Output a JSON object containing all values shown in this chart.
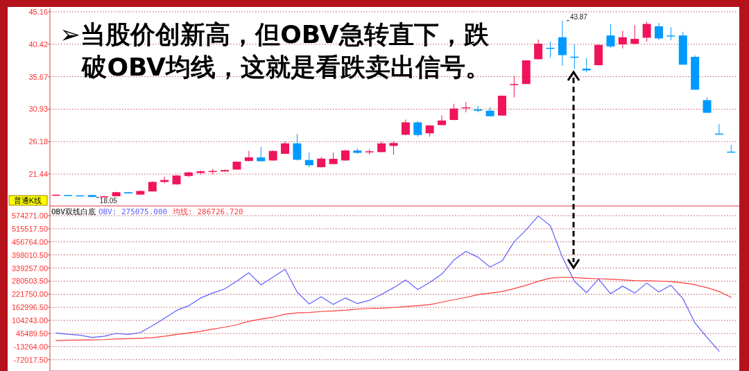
{
  "chart_data": [
    {
      "type": "candlestick",
      "title": "➢当股价创新高，但OBV急转直下，跌破OBV均线，这就是看跌卖出信号。",
      "categories": [
        null,
        null,
        null,
        null,
        null,
        null,
        null,
        null,
        null,
        null,
        null,
        null,
        null,
        null,
        null,
        null,
        null,
        null,
        null,
        null,
        null,
        null,
        null,
        null,
        null,
        null,
        null,
        null,
        null,
        null,
        null,
        null,
        null,
        null,
        null,
        null,
        null,
        null,
        null,
        null,
        null,
        null,
        null,
        null,
        null,
        null,
        null,
        null,
        null,
        null,
        null,
        null,
        null,
        null,
        null,
        null,
        null
      ],
      "ohlc": [
        [
          18.34,
          18.45,
          18.3,
          18.42
        ],
        [
          18.38,
          18.42,
          18.26,
          18.28
        ],
        [
          18.33,
          18.36,
          18.22,
          18.24
        ],
        [
          18.37,
          18.4,
          18.05,
          18.1
        ],
        [
          18.1,
          18.25,
          18.08,
          18.2
        ],
        [
          18.2,
          18.85,
          18.2,
          18.79
        ],
        [
          18.79,
          18.85,
          18.6,
          18.62
        ],
        [
          18.44,
          19.05,
          18.4,
          18.97
        ],
        [
          18.9,
          20.4,
          18.9,
          20.29
        ],
        [
          20.29,
          21.06,
          20.1,
          20.57
        ],
        [
          19.94,
          21.3,
          19.9,
          21.23
        ],
        [
          21.16,
          21.8,
          21.0,
          21.68
        ],
        [
          21.6,
          21.95,
          21.4,
          21.85
        ],
        [
          21.75,
          22.2,
          21.4,
          21.89
        ],
        [
          21.82,
          22.1,
          21.8,
          22.03
        ],
        [
          22.1,
          23.3,
          22.05,
          23.25
        ],
        [
          23.36,
          24.82,
          23.3,
          23.88
        ],
        [
          23.88,
          25.45,
          23.3,
          23.32
        ],
        [
          23.43,
          24.9,
          23.4,
          24.82
        ],
        [
          24.4,
          26.2,
          24.4,
          25.93
        ],
        [
          25.93,
          27.33,
          23.43,
          23.53
        ],
        [
          23.5,
          24.6,
          22.45,
          22.73
        ],
        [
          22.45,
          23.95,
          22.4,
          23.7
        ],
        [
          22.9,
          24.58,
          22.9,
          23.67
        ],
        [
          23.43,
          24.95,
          23.4,
          24.89
        ],
        [
          24.89,
          25.24,
          24.4,
          24.54
        ],
        [
          24.7,
          25.1,
          24.3,
          24.77
        ],
        [
          24.65,
          26.2,
          24.65,
          25.93
        ],
        [
          25.56,
          26.19,
          24.27,
          25.98
        ],
        [
          27.19,
          29.4,
          27.1,
          29.0
        ],
        [
          29.0,
          29.2,
          26.9,
          27.15
        ],
        [
          27.4,
          28.6,
          26.9,
          28.55
        ],
        [
          28.6,
          30.05,
          28.6,
          29.27
        ],
        [
          29.35,
          31.72,
          29.3,
          31.02
        ],
        [
          31.1,
          31.96,
          30.46,
          31.2
        ],
        [
          30.9,
          31.4,
          30.46,
          30.7
        ],
        [
          30.7,
          31.2,
          29.9,
          29.9
        ],
        [
          30.0,
          32.9,
          30.0,
          32.9
        ],
        [
          34.5,
          35.8,
          32.66,
          34.6
        ],
        [
          34.6,
          38.1,
          34.6,
          38.06
        ],
        [
          38.23,
          41.1,
          38.2,
          40.5
        ],
        [
          39.9,
          40.8,
          38.5,
          39.8
        ],
        [
          41.44,
          43.87,
          37.3,
          38.83
        ],
        [
          38.6,
          40.4,
          36.8,
          38.5
        ],
        [
          36.85,
          38.4,
          36.3,
          36.6
        ],
        [
          37.36,
          40.4,
          37.3,
          40.32
        ],
        [
          41.7,
          43.35,
          39.87,
          40.1
        ],
        [
          40.4,
          42.4,
          39.8,
          41.44
        ],
        [
          40.5,
          43.2,
          40.4,
          41.2
        ],
        [
          41.37,
          43.7,
          40.8,
          43.39
        ],
        [
          43.04,
          43.56,
          41.0,
          41.27
        ],
        [
          41.7,
          42.9,
          41.0,
          41.6
        ],
        [
          41.7,
          42.24,
          37.43,
          37.43
        ],
        [
          38.58,
          38.8,
          33.77,
          33.77
        ],
        [
          32.24,
          32.66,
          30.4,
          30.4
        ],
        [
          27.36,
          28.76,
          27.3,
          27.3
        ],
        [
          24.72,
          25.69,
          24.7,
          24.7
        ]
      ],
      "colors": [
        "#f0145a",
        "#0099ff",
        "#0099ff",
        "#0099ff",
        "#f0145a",
        "#f0145a",
        "#0099ff",
        "#f0145a",
        "#f0145a",
        "#f0145a",
        "#f0145a",
        "#f0145a",
        "#f0145a",
        "#f0145a",
        "#f0145a",
        "#f0145a",
        "#f0145a",
        "#0099ff",
        "#f0145a",
        "#f0145a",
        "#0099ff",
        "#0099ff",
        "#f0145a",
        "#f0145a",
        "#f0145a",
        "#0099ff",
        "#f0145a",
        "#f0145a",
        "#f0145a",
        "#f0145a",
        "#0099ff",
        "#f0145a",
        "#f0145a",
        "#f0145a",
        "#f0145a",
        "#0099ff",
        "#0099ff",
        "#f0145a",
        "#f0145a",
        "#f0145a",
        "#f0145a",
        "#0099ff",
        "#0099ff",
        "#0099ff",
        "#0099ff",
        "#f0145a",
        "#0099ff",
        "#f0145a",
        "#f0145a",
        "#f0145a",
        "#0099ff",
        "#0099ff",
        "#0099ff",
        "#0099ff",
        "#0099ff",
        "#0099ff",
        "#0099ff"
      ],
      "ylim": [
        16.78,
        45.67
      ],
      "yticks": [
        21.44,
        26.18,
        30.93,
        35.67,
        40.42,
        45.16
      ],
      "grid": "y",
      "tick_labels": "y",
      "annotations": [
        "普通K线",
        "18.05",
        "43.87"
      ]
    },
    {
      "type": "line",
      "title": "OBV双线白底",
      "categories": [
        null,
        null,
        null,
        null,
        null,
        null,
        null,
        null,
        null,
        null,
        null,
        null,
        null,
        null,
        null,
        null,
        null,
        null,
        null,
        null,
        null,
        null,
        null,
        null,
        null,
        null,
        null,
        null,
        null,
        null,
        null,
        null,
        null,
        null,
        null,
        null,
        null,
        null,
        null,
        null,
        null,
        null,
        null,
        null,
        null,
        null,
        null,
        null,
        null,
        null,
        null,
        null,
        null,
        null,
        null,
        null,
        null
      ],
      "series": [
        {
          "color": "#5c5cff",
          "values": [
            48000,
            42000,
            38000,
            28000,
            33000,
            46000,
            41000,
            50000,
            80000,
            114000,
            149000,
            170000,
            205000,
            227000,
            246000,
            280000,
            318000,
            264000,
            298000,
            334000,
            232000,
            178000,
            210000,
            176000,
            205000,
            180000,
            194000,
            221000,
            251000,
            286000,
            243000,
            275000,
            312000,
            375000,
            414000,
            388000,
            344000,
            371000,
            457000,
            511000,
            573000,
            529000,
            388000,
            280000,
            229000,
            290000,
            224000,
            258000,
            227000,
            272000,
            232000,
            262000,
            202000,
            92000,
            28000,
            -34000,
            null
          ]
        },
        {
          "color": "#ff3c3c",
          "values": [
            14000,
            15000,
            16000,
            17000,
            18000,
            21000,
            22000,
            24000,
            27000,
            33000,
            41000,
            48000,
            55000,
            65000,
            74000,
            85000,
            100000,
            110000,
            119000,
            132000,
            138000,
            140000,
            144000,
            147000,
            150000,
            155000,
            158000,
            159000,
            162000,
            166000,
            171000,
            175000,
            186000,
            197000,
            207000,
            220000,
            227000,
            234000,
            247000,
            262000,
            280000,
            294000,
            298000,
            296000,
            293000,
            291000,
            289000,
            286000,
            283000,
            282000,
            281000,
            278000,
            273000,
            264000,
            251000,
            234000,
            208000
          ]
        }
      ],
      "ylim": [
        -122800,
        617800
      ],
      "yticks": [
        {
          "value": -72017.5,
          "label": "-72017.50"
        },
        {
          "value": -13264,
          "label": "-13264.00"
        },
        {
          "value": 45489.5,
          "label": "45489.50"
        },
        {
          "value": 104243,
          "label": "104243.00"
        },
        {
          "value": 162996.5,
          "label": "162996.50"
        },
        {
          "value": 221750,
          "label": "221750.00"
        },
        {
          "value": 280503.5,
          "label": "280503.50"
        },
        {
          "value": 339257,
          "label": "339257.00"
        },
        {
          "value": 398010.5,
          "label": "398010.50"
        },
        {
          "value": 456764,
          "label": "456764.00"
        },
        {
          "value": 515517.5,
          "label": "515517.50"
        },
        {
          "value": 574271,
          "label": "574271.00"
        }
      ],
      "grid": "y",
      "tick_labels": "y",
      "annotations": [
        "OBV: 275075.000",
        "均线: 286726.720"
      ]
    }
  ]
}
